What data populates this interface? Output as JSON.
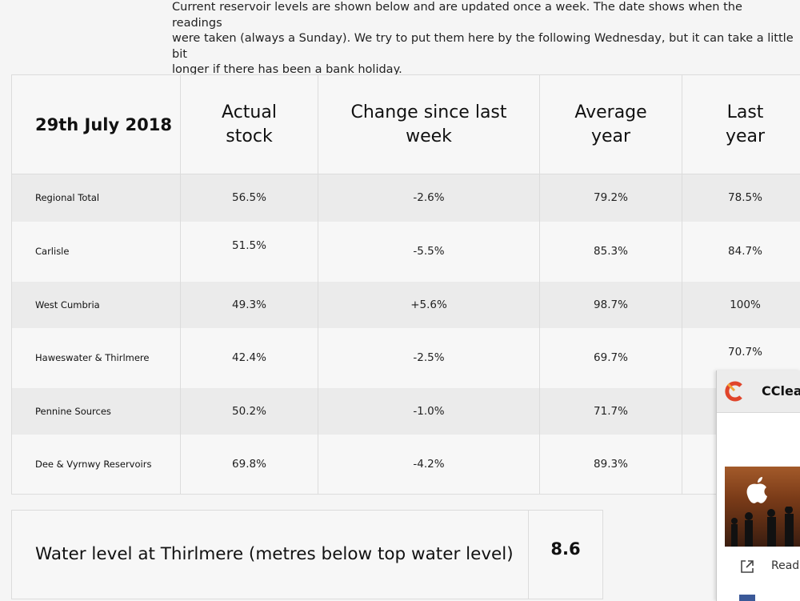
{
  "intro": {
    "line1": "Current reservoir levels are shown below and are updated once a week. The date shows when the readings",
    "line2": "were taken (always a Sunday). We try to put them here by the following Wednesday, but it can take a little bit",
    "line3": "longer if there has been a bank holiday."
  },
  "table": {
    "date": "29th July 2018",
    "headers": {
      "actual_1": "Actual",
      "actual_2": "stock",
      "change_1": "Change since last",
      "change_2": "week",
      "average_1": "Average",
      "average_2": "year",
      "last_1": "Last",
      "last_2": "year"
    },
    "rows": [
      {
        "name": "Regional Total",
        "actual": "56.5%",
        "change": "-2.6%",
        "average": "79.2%",
        "last": "78.5%"
      },
      {
        "name": "Carlisle",
        "actual": "51.5%",
        "change": "-5.5%",
        "average": "85.3%",
        "last": "84.7%"
      },
      {
        "name": "West Cumbria",
        "actual": "49.3%",
        "change": "+5.6%",
        "average": "98.7%",
        "last": "100%"
      },
      {
        "name": "Haweswater & Thirlmere",
        "actual": "42.4%",
        "change": "-2.5%",
        "average": "69.7%",
        "last": "70.7%"
      },
      {
        "name": "Pennine Sources",
        "actual": "50.2%",
        "change": "-1.0%",
        "average": "71.7%",
        "last": ""
      },
      {
        "name": "Dee & Vyrnwy Reservoirs",
        "actual": "69.8%",
        "change": "-4.2%",
        "average": "89.3%",
        "last": ""
      }
    ]
  },
  "thirlmere": {
    "label": "Water level at Thirlmere (metres below top water level)",
    "value": "8.6"
  },
  "popup": {
    "title": "CClea",
    "read_label": "Read",
    "logo_icon": "ccleaner-logo-icon",
    "brand_colors": [
      "#e0452b",
      "#f2a63a"
    ]
  }
}
